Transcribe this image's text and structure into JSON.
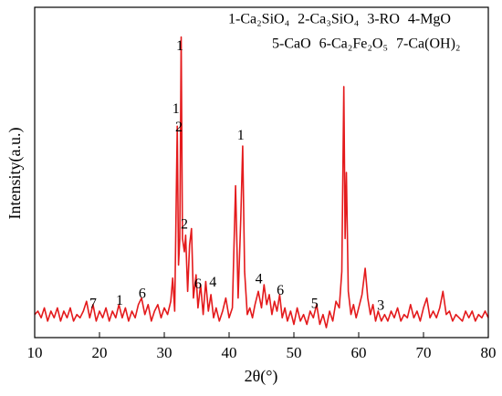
{
  "chart_data": {
    "type": "line",
    "legend": [
      "1-Ca₂SiO₄",
      "2-Ca₃SiO₄",
      "3-RO",
      "4-MgO",
      "5-CaO",
      "6-Ca₂Fe₂O₅",
      "7-Ca(OH)₂"
    ],
    "x_label": "2θ(°)",
    "y_label": "Intensity(a.u.)",
    "color": "#e41a1c",
    "x": [
      10,
      10.5,
      11,
      11.5,
      12,
      12.5,
      13,
      13.5,
      14,
      14.5,
      15,
      15.5,
      16,
      16.5,
      17,
      17.5,
      18,
      18.5,
      19,
      19.5,
      20,
      20.5,
      21,
      21.5,
      22,
      22.5,
      23,
      23.5,
      24,
      24.5,
      25,
      25.5,
      26,
      26.5,
      27,
      27.5,
      28,
      28.5,
      29,
      29.5,
      30,
      30.5,
      31,
      31.3,
      31.6,
      32,
      32.2,
      32.4,
      32.6,
      32.8,
      33.1,
      33.3,
      33.6,
      33.9,
      34.2,
      34.5,
      34.9,
      35.2,
      35.6,
      36,
      36.4,
      36.8,
      37.2,
      37.6,
      38,
      38.5,
      39,
      39.5,
      40,
      40.5,
      41,
      41.4,
      41.8,
      42.1,
      42.4,
      42.8,
      43.2,
      43.6,
      44,
      44.5,
      45,
      45.4,
      45.8,
      46.2,
      46.6,
      47,
      47.4,
      47.8,
      48.2,
      48.6,
      49,
      49.5,
      50,
      50.5,
      51,
      51.5,
      52,
      52.5,
      53,
      53.5,
      54,
      54.5,
      55,
      55.5,
      56,
      56.5,
      57,
      57.4,
      57.7,
      57.9,
      58.1,
      58.4,
      58.8,
      59.2,
      59.6,
      60,
      60.5,
      61,
      61.4,
      61.8,
      62.2,
      62.6,
      63,
      63.5,
      64,
      64.5,
      65,
      65.5,
      66,
      66.5,
      67,
      67.5,
      68,
      68.5,
      69,
      69.5,
      70,
      70.5,
      71,
      71.5,
      72,
      72.5,
      73,
      73.5,
      74,
      74.5,
      75,
      75.5,
      76,
      76.5,
      77,
      77.5,
      78,
      78.5,
      79,
      79.5,
      80
    ],
    "values": [
      7,
      8,
      6,
      9,
      5,
      8,
      6,
      9,
      5,
      8,
      6,
      9,
      5,
      7,
      6,
      8,
      11,
      6,
      10,
      5,
      8,
      6,
      9,
      5,
      8,
      6,
      10,
      6,
      9,
      5,
      8,
      6,
      10,
      12,
      7,
      10,
      5,
      8,
      10,
      6,
      9,
      7,
      11,
      18,
      8,
      64,
      22,
      30,
      91,
      30,
      26,
      31,
      14,
      28,
      33,
      12,
      19,
      9,
      16,
      7,
      17,
      8,
      13,
      6,
      9,
      5,
      8,
      12,
      6,
      9,
      46,
      12,
      36,
      58,
      20,
      7,
      9,
      6,
      10,
      14,
      9,
      16,
      10,
      13,
      7,
      11,
      8,
      13,
      6,
      9,
      5,
      8,
      4,
      9,
      5,
      7,
      4,
      8,
      6,
      10,
      4,
      7,
      3,
      8,
      5,
      11,
      9,
      20,
      76,
      30,
      50,
      14,
      7,
      10,
      6,
      9,
      13,
      21,
      12,
      7,
      10,
      5,
      8,
      5,
      7,
      5,
      8,
      6,
      9,
      5,
      7,
      6,
      10,
      6,
      8,
      5,
      9,
      12,
      6,
      8,
      6,
      9,
      14,
      7,
      8,
      5,
      7,
      6,
      5,
      8,
      6,
      8,
      5,
      7,
      6,
      8,
      6
    ],
    "xlim": [
      10,
      80
    ],
    "xticks": [
      10,
      20,
      30,
      40,
      50,
      60,
      70,
      80
    ],
    "ylim": [
      0,
      100
    ],
    "annotations": [
      {
        "text": "1",
        "x": 32.4,
        "y": 88
      },
      {
        "text": "1",
        "x": 31.8,
        "y": 69
      },
      {
        "text": "2",
        "x": 32.25,
        "y": 63.5
      },
      {
        "text": "2",
        "x": 33.1,
        "y": 34
      },
      {
        "text": "1",
        "x": 41.8,
        "y": 61
      },
      {
        "text": "7",
        "x": 19,
        "y": 10
      },
      {
        "text": "1",
        "x": 23.1,
        "y": 11
      },
      {
        "text": "6",
        "x": 26.6,
        "y": 13
      },
      {
        "text": "6",
        "x": 35.2,
        "y": 16
      },
      {
        "text": "4",
        "x": 37.5,
        "y": 16.5
      },
      {
        "text": "4",
        "x": 44.6,
        "y": 17.4
      },
      {
        "text": "6",
        "x": 47.9,
        "y": 14
      },
      {
        "text": "5",
        "x": 53.2,
        "y": 10
      },
      {
        "text": "3",
        "x": 63.4,
        "y": 9.4
      }
    ]
  }
}
